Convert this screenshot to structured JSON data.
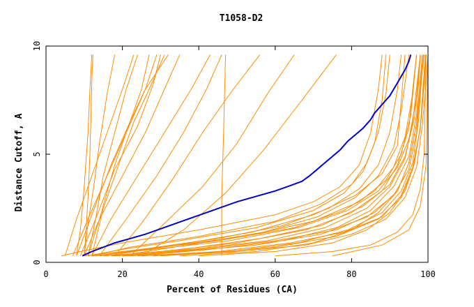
{
  "chart_data": {
    "type": "line",
    "title": "T1058-D2",
    "xlabel": "Percent of Residues (CA)",
    "ylabel": "Distance Cutoff, A",
    "xlim": [
      0,
      100
    ],
    "ylim": [
      0,
      10
    ],
    "x_ticks": [
      "0",
      "20",
      "40",
      "60",
      "80",
      "100"
    ],
    "y_ticks": [
      "0",
      "5",
      "10"
    ],
    "colors": {
      "background_models": "#ff8c00",
      "highlight_model": "#0000cd",
      "frame": "#000000"
    },
    "highlight_series": {
      "x": [
        9.5,
        12,
        15,
        18,
        22,
        26,
        30,
        34,
        38,
        42,
        46,
        50,
        55,
        60,
        64,
        67,
        69,
        71,
        73,
        75,
        77,
        79,
        81,
        83,
        85,
        86,
        87,
        88,
        89,
        90,
        91,
        92,
        93,
        94,
        95,
        95.5
      ],
      "y": [
        0.3,
        0.5,
        0.7,
        0.9,
        1.1,
        1.3,
        1.55,
        1.8,
        2.05,
        2.3,
        2.55,
        2.8,
        3.05,
        3.3,
        3.55,
        3.75,
        4.0,
        4.3,
        4.6,
        4.9,
        5.2,
        5.6,
        5.9,
        6.2,
        6.6,
        6.9,
        7.1,
        7.3,
        7.5,
        7.7,
        8.0,
        8.3,
        8.6,
        8.9,
        9.3,
        9.6
      ]
    },
    "background_series": [
      {
        "x": [
          10,
          10.5,
          11,
          11.5,
          11.8,
          12,
          12.3
        ],
        "y": [
          0.3,
          1.5,
          3,
          5,
          7,
          8.5,
          9.6
        ]
      },
      {
        "x": [
          8,
          9,
          10,
          11,
          11.5,
          12
        ],
        "y": [
          0.3,
          1.5,
          3.5,
          6,
          8,
          9.6
        ]
      },
      {
        "x": [
          10,
          11,
          12.5,
          14,
          16,
          18
        ],
        "y": [
          0.3,
          1.8,
          3.5,
          5.5,
          7.8,
          9.6
        ]
      },
      {
        "x": [
          11,
          13,
          15,
          18,
          21,
          24
        ],
        "y": [
          0.3,
          2,
          4,
          6,
          8,
          9.6
        ]
      },
      {
        "x": [
          5,
          8,
          12,
          16,
          20,
          23
        ],
        "y": [
          0.3,
          2,
          4,
          6,
          8,
          9.6
        ]
      },
      {
        "x": [
          11,
          14,
          18,
          22,
          25,
          27
        ],
        "y": [
          0.3,
          2,
          4.5,
          6.5,
          8,
          9.6
        ]
      },
      {
        "x": [
          8,
          12,
          17,
          22,
          26,
          29
        ],
        "y": [
          0.3,
          2.2,
          4.5,
          6.5,
          8,
          9.6
        ]
      },
      {
        "x": [
          9,
          13,
          18,
          24,
          28,
          30
        ],
        "y": [
          0.3,
          2,
          4.3,
          6.3,
          8.2,
          9.6
        ]
      },
      {
        "x": [
          12,
          15,
          19,
          23,
          27,
          31
        ],
        "y": [
          0.3,
          2.5,
          4.5,
          6.5,
          8,
          9.6
        ]
      },
      {
        "x": [
          7,
          11,
          16,
          21,
          26,
          32
        ],
        "y": [
          0.3,
          2,
          4,
          6,
          8,
          9.6
        ]
      },
      {
        "x": [
          10,
          14,
          20,
          26,
          31,
          35
        ],
        "y": [
          0.3,
          2,
          4,
          6,
          8,
          9.6
        ]
      },
      {
        "x": [
          12,
          17,
          24,
          31,
          38,
          43
        ],
        "y": [
          0.3,
          2,
          4,
          6,
          8,
          9.6
        ]
      },
      {
        "x": [
          14,
          21,
          29,
          36,
          42,
          46
        ],
        "y": [
          0.3,
          2,
          4,
          6,
          8,
          9.6
        ]
      },
      {
        "x": [
          46,
          46,
          46.5,
          47
        ],
        "y": [
          0.3,
          3,
          6,
          9.6
        ]
      },
      {
        "x": [
          18,
          25,
          33,
          41,
          49,
          56
        ],
        "y": [
          0.3,
          1.8,
          3.8,
          6,
          8,
          9.6
        ]
      },
      {
        "x": [
          22,
          31,
          41,
          50,
          58,
          65
        ],
        "y": [
          0.3,
          1.8,
          3.5,
          5.5,
          7.8,
          9.6
        ]
      },
      {
        "x": [
          25,
          36,
          47,
          57,
          67,
          76
        ],
        "y": [
          0.3,
          1.5,
          3.2,
          5.2,
          7.5,
          9.6
        ]
      },
      {
        "x": [
          4,
          9,
          20,
          40,
          60,
          70,
          77,
          82,
          85,
          87,
          88
        ],
        "y": [
          0.3,
          0.5,
          0.9,
          1.5,
          2.2,
          2.8,
          3.5,
          4.5,
          6,
          8,
          9.6
        ]
      },
      {
        "x": [
          11,
          20,
          35,
          55,
          70,
          78,
          83,
          86,
          88,
          89
        ],
        "y": [
          0.3,
          0.6,
          1.0,
          1.6,
          2.4,
          3.2,
          4.2,
          5.5,
          7.5,
          9.6
        ]
      },
      {
        "x": [
          12,
          22,
          40,
          60,
          72,
          80,
          84,
          87,
          89,
          90
        ],
        "y": [
          0.3,
          0.7,
          1.2,
          1.9,
          2.7,
          3.6,
          4.6,
          6.0,
          7.8,
          9.6
        ]
      },
      {
        "x": [
          13,
          25,
          45,
          62,
          74,
          82,
          87,
          90,
          92,
          93
        ],
        "y": [
          0.3,
          0.6,
          1.1,
          1.7,
          2.5,
          3.4,
          4.5,
          6.0,
          8.0,
          9.6
        ]
      },
      {
        "x": [
          15,
          30,
          50,
          68,
          80,
          88,
          92,
          95,
          96,
          97
        ],
        "y": [
          0.3,
          0.5,
          0.9,
          1.5,
          2.3,
          3.3,
          4.5,
          6.2,
          8.0,
          9.6
        ]
      },
      {
        "x": [
          18,
          35,
          55,
          72,
          84,
          91,
          95,
          97,
          98,
          98.5
        ],
        "y": [
          0.3,
          0.5,
          0.8,
          1.3,
          2.1,
          3.1,
          4.3,
          6.0,
          8.0,
          9.6
        ]
      },
      {
        "x": [
          20,
          40,
          60,
          76,
          87,
          93,
          96,
          98,
          99,
          99.5
        ],
        "y": [
          0.3,
          0.4,
          0.7,
          1.2,
          2.0,
          3.0,
          4.3,
          6.2,
          8.2,
          9.6
        ]
      },
      {
        "x": [
          30,
          50,
          68,
          80,
          89,
          94,
          97,
          98.5,
          99.5,
          100
        ],
        "y": [
          0.3,
          0.5,
          0.8,
          1.3,
          2.0,
          3.0,
          4.4,
          6.3,
          8.3,
          9.6
        ]
      },
      {
        "x": [
          10,
          25,
          45,
          65,
          78,
          86,
          91,
          94,
          96,
          97
        ],
        "y": [
          0.3,
          0.6,
          1.0,
          1.6,
          2.4,
          3.3,
          4.4,
          5.8,
          7.8,
          9.6
        ]
      },
      {
        "x": [
          12,
          28,
          48,
          66,
          79,
          87,
          92,
          95,
          97,
          98
        ],
        "y": [
          0.3,
          0.6,
          1.0,
          1.6,
          2.4,
          3.3,
          4.4,
          5.7,
          7.6,
          9.6
        ]
      },
      {
        "x": [
          14,
          30,
          52,
          70,
          82,
          89,
          93,
          95.5,
          97
        ],
        "y": [
          0.3,
          0.7,
          1.2,
          1.9,
          2.8,
          3.8,
          5.0,
          6.8,
          9.6
        ]
      },
      {
        "x": [
          16,
          34,
          54,
          70,
          81,
          88,
          92,
          94
        ],
        "y": [
          0.3,
          0.8,
          1.4,
          2.2,
          3.1,
          4.1,
          5.4,
          9.6
        ]
      },
      {
        "x": [
          20,
          38,
          58,
          73,
          84,
          90,
          94,
          96,
          98
        ],
        "y": [
          0.3,
          0.6,
          1.0,
          1.6,
          2.5,
          3.5,
          4.8,
          6.5,
          9.6
        ]
      },
      {
        "x": [
          22,
          40,
          60,
          76,
          86,
          92,
          95,
          97,
          99
        ],
        "y": [
          0.3,
          0.6,
          1.0,
          1.5,
          2.3,
          3.3,
          4.6,
          6.4,
          9.6
        ]
      },
      {
        "x": [
          25,
          45,
          64,
          78,
          88,
          93,
          96,
          98,
          99.5
        ],
        "y": [
          0.3,
          0.5,
          0.9,
          1.4,
          2.1,
          3.1,
          4.4,
          6.2,
          9.6
        ]
      },
      {
        "x": [
          40,
          60,
          75,
          84,
          90,
          94,
          96.5,
          98,
          99.3
        ],
        "y": [
          0.3,
          0.5,
          0.9,
          1.5,
          2.3,
          3.3,
          4.6,
          6.3,
          9.6
        ]
      },
      {
        "x": [
          60,
          75,
          85,
          92,
          96,
          98,
          99,
          99.5
        ],
        "y": [
          0.3,
          0.5,
          0.8,
          1.4,
          2.2,
          3.4,
          5.0,
          9.6
        ]
      },
      {
        "x": [
          75,
          88,
          95,
          98,
          99.5,
          100
        ],
        "y": [
          0.3,
          0.8,
          1.5,
          2.6,
          4.5,
          9.6
        ]
      },
      {
        "x": [
          35,
          55,
          70,
          80,
          87,
          92,
          95,
          97,
          98.5
        ],
        "y": [
          0.3,
          0.5,
          0.9,
          1.5,
          2.3,
          3.3,
          4.6,
          6.4,
          9.6
        ]
      },
      {
        "x": [
          28,
          48,
          66,
          79,
          88,
          93,
          96,
          97.5,
          98.8
        ],
        "y": [
          0.3,
          0.5,
          0.9,
          1.5,
          2.3,
          3.3,
          4.6,
          6.5,
          9.6
        ]
      },
      {
        "x": [
          17,
          36,
          56,
          72,
          83,
          90,
          94,
          96.5,
          98
        ],
        "y": [
          0.3,
          0.6,
          1.1,
          1.7,
          2.6,
          3.6,
          4.9,
          6.7,
          9.6
        ]
      },
      {
        "x": [
          19,
          37,
          57,
          71,
          81,
          87,
          91,
          93,
          95
        ],
        "y": [
          0.3,
          0.8,
          1.4,
          2.1,
          3.0,
          4.0,
          5.3,
          7.0,
          9.6
        ]
      },
      {
        "x": [
          24,
          43,
          62,
          76,
          85,
          91,
          95,
          97,
          98
        ],
        "y": [
          0.3,
          0.6,
          1.0,
          1.6,
          2.4,
          3.5,
          4.9,
          6.8,
          9.6
        ]
      }
    ]
  }
}
